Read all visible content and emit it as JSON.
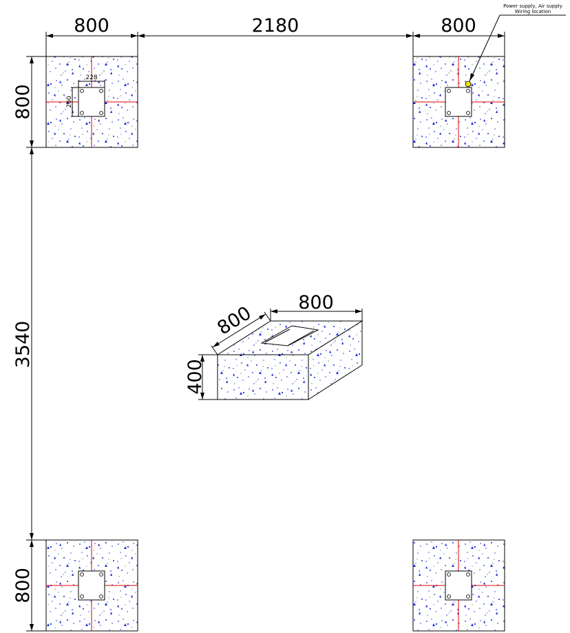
{
  "drawing": {
    "dimensions": {
      "top_left_width": "800",
      "top_span": "2180",
      "top_right_width": "800",
      "left_top_height": "800",
      "left_span": "3540",
      "left_bottom_height": "800"
    },
    "plate_dimensions": {
      "width": "228",
      "height": "260"
    },
    "iso_block": {
      "depth": "800",
      "width": "800",
      "height": "400"
    },
    "callout": {
      "line1": "Power supply, Air supply",
      "line2": "Wiring location"
    },
    "colors": {
      "concrete_speckle": "#1a2ed6",
      "center_line": "#e00000",
      "callout_marker": "#f2e300"
    },
    "icons": {
      "callout_marker": "yellow-dot-icon",
      "anchor_bolt": "circle-icon"
    }
  }
}
